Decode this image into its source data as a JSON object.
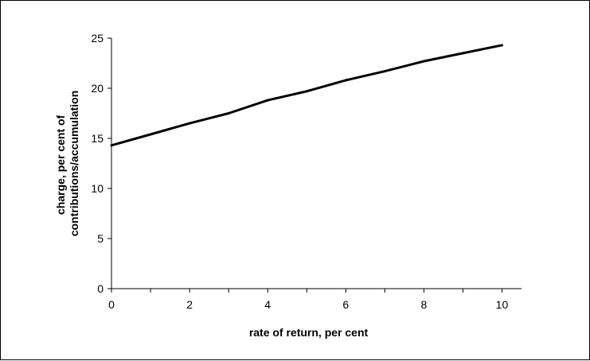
{
  "chart_data": {
    "type": "line",
    "title": "",
    "xlabel": "rate of return, per cent",
    "ylabel_lines": [
      "charge, per cent of",
      "contributions/accumulation"
    ],
    "xlim": [
      0,
      10.5
    ],
    "ylim": [
      0,
      25
    ],
    "xticks": [
      0,
      2,
      4,
      6,
      8,
      10
    ],
    "yticks": [
      0,
      5,
      10,
      15,
      20,
      25
    ],
    "grid": false,
    "legend": "none",
    "line_color": "#000000",
    "series": [
      {
        "x": [
          0,
          1,
          2,
          3,
          4,
          5,
          6,
          7,
          8,
          9,
          10
        ],
        "values": [
          14.3,
          15.4,
          16.5,
          17.5,
          18.8,
          19.7,
          20.8,
          21.7,
          22.7,
          23.5,
          24.3
        ]
      }
    ]
  }
}
